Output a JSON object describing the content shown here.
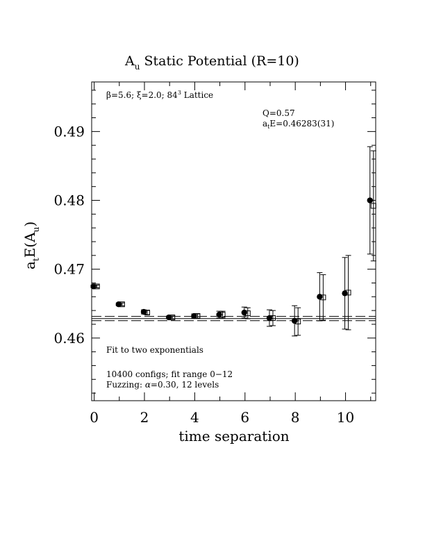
{
  "chart_data": {
    "type": "scatter",
    "title_main": "A",
    "title_sub": "u",
    "title_rest": " Static Potential (R=10)",
    "xlabel": "time separation",
    "ylabel_a": "a",
    "ylabel_t": "t",
    "ylabel_mid": "E(A",
    "ylabel_u": "u",
    "ylabel_end": ")",
    "xlim": [
      -0.1,
      11.2
    ],
    "ylim": [
      0.4509,
      0.4972
    ],
    "x_ticks": [
      0,
      2,
      4,
      6,
      8,
      10
    ],
    "x_tick_labels": [
      "0",
      "2",
      "4",
      "6",
      "8",
      "10"
    ],
    "y_ticks": [
      0.46,
      0.47,
      0.48,
      0.49
    ],
    "y_tick_labels": [
      "0.46",
      "0.47",
      "0.48",
      "0.49"
    ],
    "annotations": {
      "lattice_beta": "β=5.6; ",
      "lattice_xi": "ξ=2.0; 84",
      "lattice_sup": "3",
      "lattice_rest": " Lattice",
      "q_value": "Q=0.57",
      "energy_a": "a",
      "energy_t": "t",
      "energy_rest": "E=0.46283(31)",
      "fit_label": "Fit to two exponentials",
      "configs": "10400 configs; fit range 0−12",
      "fuzzing_prefix": "Fuzzing: ",
      "fuzzing_alpha": "α",
      "fuzzing_rest": "=0.30, 12 levels"
    },
    "fit": {
      "value": 0.46283,
      "error": 0.00031,
      "style": "solid line with dashed error band"
    },
    "series": [
      {
        "marker": "filled circle",
        "x": [
          0,
          1,
          2,
          3,
          4,
          5,
          6,
          7,
          8,
          9,
          10,
          11
        ],
        "y": [
          0.4675,
          0.4649,
          0.4638,
          0.463,
          0.4632,
          0.4634,
          0.4637,
          0.4629,
          0.4625,
          0.466,
          0.4665,
          0.48
        ],
        "err": [
          0.0002,
          0.0002,
          0.0003,
          0.0002,
          0.0003,
          0.0005,
          0.0008,
          0.0012,
          0.0022,
          0.0035,
          0.0052,
          0.0078
        ]
      },
      {
        "marker": "open square",
        "x": [
          0,
          1,
          2,
          3,
          4,
          5,
          6,
          7,
          8,
          9,
          10,
          11
        ],
        "y": [
          0.4675,
          0.4649,
          0.4637,
          0.463,
          0.4632,
          0.4634,
          0.4636,
          0.4629,
          0.4624,
          0.4659,
          0.4666,
          0.4792
        ],
        "err": [
          0.0002,
          0.0002,
          0.0003,
          0.0002,
          0.0003,
          0.0005,
          0.0008,
          0.0011,
          0.002,
          0.0033,
          0.0054,
          0.008
        ]
      }
    ]
  }
}
